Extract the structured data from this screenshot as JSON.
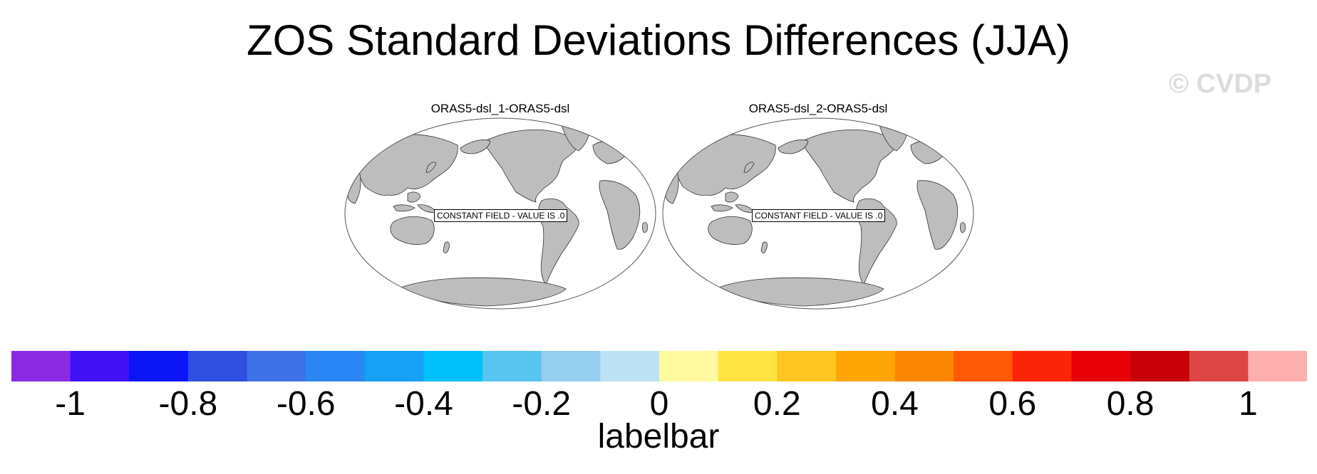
{
  "chart_data": {
    "type": "heatmap",
    "title": "ZOS Standard Deviations Differences (JJA)",
    "watermark": "© CVDP",
    "panels": [
      {
        "title": "ORAS5-dsl_1-ORAS5-dsl",
        "annotation": "CONSTANT FIELD - VALUE IS .0",
        "value": 0
      },
      {
        "title": "ORAS5-dsl_2-ORAS5-dsl",
        "annotation": "CONSTANT FIELD - VALUE IS .0",
        "value": 0
      }
    ],
    "colorbar": {
      "label": "labelbar",
      "range": [
        -1.1,
        1.1
      ],
      "levels": [
        -1,
        -0.9,
        -0.8,
        -0.7,
        -0.6,
        -0.5,
        -0.4,
        -0.3,
        -0.2,
        -0.1,
        0,
        0.1,
        0.2,
        0.3,
        0.4,
        0.5,
        0.6,
        0.7,
        0.8,
        0.9,
        1
      ],
      "colors": [
        "#8a2be2",
        "#4011f5",
        "#0a14f5",
        "#2f4fe0",
        "#3d72e6",
        "#2a86f5",
        "#18a0f5",
        "#00c2fa",
        "#58c5f0",
        "#96cef0",
        "#bde2f5",
        "#fff9a0",
        "#ffe444",
        "#fdc520",
        "#fca505",
        "#fd8705",
        "#fe5a05",
        "#fa2508",
        "#e80008",
        "#c80008",
        "#dd4444",
        "#feb0b0"
      ],
      "tick_labels": [
        "-1",
        "-0.8",
        "-0.6",
        "-0.4",
        "-0.2",
        "0",
        "0.2",
        "0.4",
        "0.6",
        "0.8",
        "1"
      ]
    }
  }
}
